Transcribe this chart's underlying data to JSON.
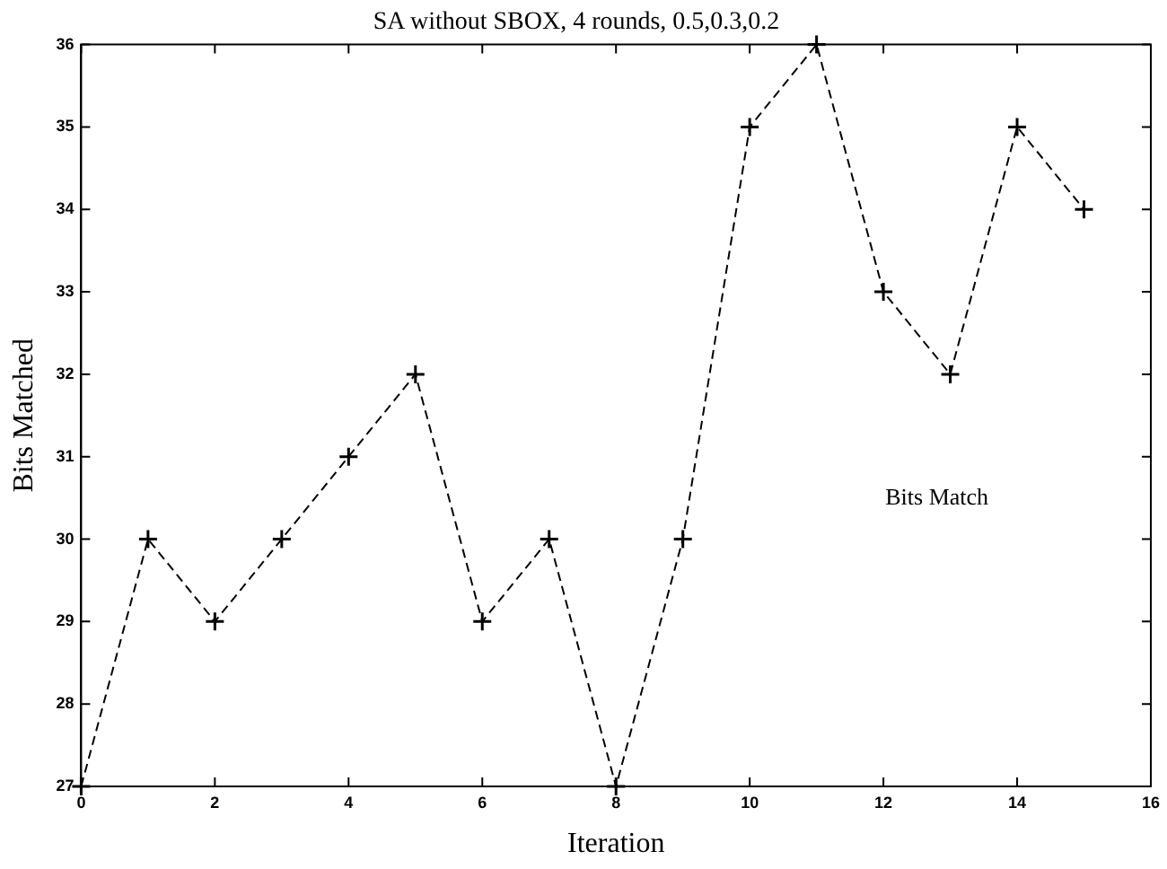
{
  "chart_data": {
    "type": "line",
    "title": "SA without SBOX, 4 rounds, 0.5,0.3,0.2",
    "xlabel": "Iteration",
    "ylabel": "Bits Matched",
    "x": [
      0,
      1,
      2,
      3,
      4,
      5,
      6,
      7,
      8,
      9,
      10,
      11,
      12,
      13,
      14,
      15
    ],
    "series": [
      {
        "color": "#000000",
        "values": [
          27,
          30,
          29,
          30,
          31,
          32,
          29,
          30,
          27,
          30,
          35,
          36,
          33,
          32,
          35,
          34
        ]
      }
    ],
    "xlim": [
      0,
      16
    ],
    "xticks": [
      0,
      2,
      4,
      6,
      8,
      10,
      12,
      14,
      16
    ],
    "ylim": [
      27,
      36
    ],
    "yticks": [
      27,
      28,
      29,
      30,
      31,
      32,
      33,
      34,
      35,
      36
    ],
    "annotations": [
      "Bits Match"
    ],
    "grid": false,
    "legend": false,
    "marker": "cross",
    "line_style": "dashed"
  }
}
